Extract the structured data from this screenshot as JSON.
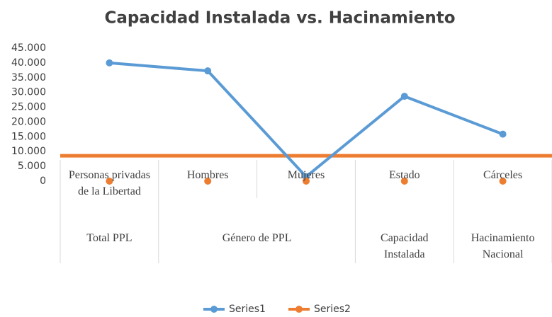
{
  "chart_data": {
    "type": "line",
    "title": "Capacidad Instalada vs. Hacinamiento",
    "categories": [
      "Personas privadas de la Libertad",
      "Hombres",
      "Mujeres",
      "Estado",
      "Cárceles"
    ],
    "groups": [
      {
        "name": "Total PPL",
        "count": 1
      },
      {
        "name": "Género de PPL",
        "count": 2
      },
      {
        "name": "Capacidad Instalada",
        "count": 1
      },
      {
        "name": "Hacinamiento Nacional",
        "count": 1
      }
    ],
    "series": [
      {
        "name": "Series1",
        "color": "#5b9bd5",
        "values": [
          40000,
          37300,
          1500,
          28700,
          15900
        ]
      },
      {
        "name": "Series2",
        "color": "#ed7d31",
        "values": [
          0,
          0,
          0,
          0,
          0
        ]
      }
    ],
    "hline": {
      "value": 8600,
      "color": "#ed7d31"
    },
    "ylim": [
      0,
      45000
    ],
    "yticks": [
      0,
      {
        "value": 5000,
        "label": "5.000"
      },
      {
        "value": 10000,
        "label": "10.000"
      },
      {
        "value": 15000,
        "label": "15.000"
      },
      {
        "value": 20000,
        "label": "20.000"
      },
      {
        "value": 25000,
        "label": "25.000"
      },
      {
        "value": 30000,
        "label": "30.000"
      },
      {
        "value": 35000,
        "label": "35.000"
      },
      {
        "value": 40000,
        "label": "40.000"
      },
      {
        "value": 45000,
        "label": "45.000"
      }
    ],
    "legend": "bottom"
  }
}
